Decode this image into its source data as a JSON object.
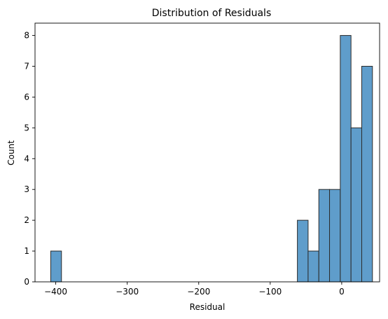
{
  "chart_data": {
    "type": "bar",
    "title": "Distribution of Residuals",
    "xlabel": "Residual",
    "ylabel": "Count",
    "xlim": [
      -429,
      53
    ],
    "ylim": [
      0,
      8.4
    ],
    "grid": false,
    "bin_width": 15,
    "bins": [
      {
        "x0": -407,
        "x1": -392,
        "count": 1
      },
      {
        "x0": -392,
        "x1": -377,
        "count": 0
      },
      {
        "x0": -377,
        "x1": -362,
        "count": 0
      },
      {
        "x0": -362,
        "x1": -347,
        "count": 0
      },
      {
        "x0": -347,
        "x1": -332,
        "count": 0
      },
      {
        "x0": -332,
        "x1": -317,
        "count": 0
      },
      {
        "x0": -317,
        "x1": -302,
        "count": 0
      },
      {
        "x0": -302,
        "x1": -287,
        "count": 0
      },
      {
        "x0": -287,
        "x1": -272,
        "count": 0
      },
      {
        "x0": -272,
        "x1": -257,
        "count": 0
      },
      {
        "x0": -257,
        "x1": -242,
        "count": 0
      },
      {
        "x0": -242,
        "x1": -227,
        "count": 0
      },
      {
        "x0": -227,
        "x1": -212,
        "count": 0
      },
      {
        "x0": -212,
        "x1": -197,
        "count": 0
      },
      {
        "x0": -197,
        "x1": -182,
        "count": 0
      },
      {
        "x0": -182,
        "x1": -167,
        "count": 0
      },
      {
        "x0": -167,
        "x1": -152,
        "count": 0
      },
      {
        "x0": -152,
        "x1": -137,
        "count": 0
      },
      {
        "x0": -137,
        "x1": -122,
        "count": 0
      },
      {
        "x0": -122,
        "x1": -107,
        "count": 0
      },
      {
        "x0": -107,
        "x1": -92,
        "count": 0
      },
      {
        "x0": -92,
        "x1": -77,
        "count": 0
      },
      {
        "x0": -77,
        "x1": -62,
        "count": 0
      },
      {
        "x0": -62,
        "x1": -47,
        "count": 2
      },
      {
        "x0": -47,
        "x1": -32,
        "count": 1
      },
      {
        "x0": -32,
        "x1": -17,
        "count": 3
      },
      {
        "x0": -17,
        "x1": -2,
        "count": 3
      },
      {
        "x0": -2,
        "x1": 13,
        "count": 8
      },
      {
        "x0": 13,
        "x1": 28,
        "count": 5
      },
      {
        "x0": 28,
        "x1": 43,
        "count": 7
      }
    ],
    "x_ticks": [
      -400,
      -300,
      -200,
      -100,
      0
    ],
    "x_tick_labels": [
      "−400",
      "−300",
      "−200",
      "−100",
      "0"
    ],
    "y_ticks": [
      0,
      1,
      2,
      3,
      4,
      5,
      6,
      7,
      8
    ],
    "y_tick_labels": [
      "0",
      "1",
      "2",
      "3",
      "4",
      "5",
      "6",
      "7",
      "8"
    ],
    "colors": {
      "bar_fill": "#5f9dcb",
      "bar_edge": "#2b2b2b",
      "axis": "#000000",
      "background": "#ffffff"
    }
  }
}
